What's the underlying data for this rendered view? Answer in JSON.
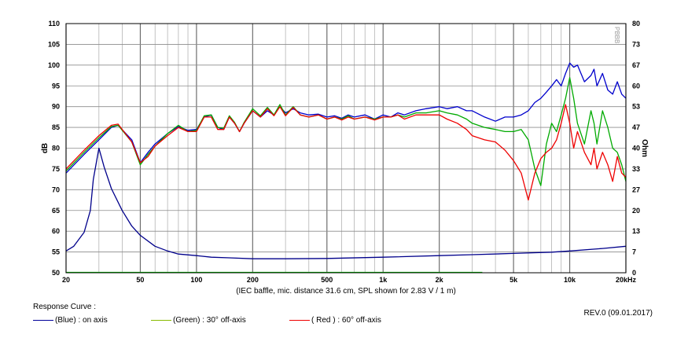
{
  "chart_data": {
    "type": "line",
    "caption": "(IEC baffle, mic. distance 31.6 cm, SPL shown for 2.83 V / 1 m)",
    "ylabel_left": "dB",
    "ylabel_right": "Ohm",
    "watermark": "PBBB",
    "x_scale": "log",
    "xlim": [
      20,
      20000
    ],
    "ylim_left": [
      50,
      110
    ],
    "ylim_right": [
      0,
      80
    ],
    "x_ticks": [
      {
        "value": 20,
        "label": "20"
      },
      {
        "value": 50,
        "label": "50"
      },
      {
        "value": 100,
        "label": "100"
      },
      {
        "value": 200,
        "label": "200"
      },
      {
        "value": 500,
        "label": "500"
      },
      {
        "value": 1000,
        "label": "1k"
      },
      {
        "value": 2000,
        "label": "2k"
      },
      {
        "value": 5000,
        "label": "5k"
      },
      {
        "value": 10000,
        "label": "10k"
      },
      {
        "value": 20000,
        "label": "20kHz"
      }
    ],
    "y_ticks_left": [
      "50",
      "55",
      "60",
      "65",
      "70",
      "75",
      "80",
      "85",
      "90",
      "95",
      "100",
      "105",
      "110"
    ],
    "y_ticks_right": [
      "0",
      "7",
      "13",
      "20",
      "27",
      "33",
      "40",
      "47",
      "53",
      "60",
      "67",
      "73",
      "80"
    ],
    "grid": true,
    "series": [
      {
        "name": "(Blue)  : on axis",
        "color": "#0000cc",
        "axis": "left",
        "x": [
          20,
          25,
          30,
          35,
          38,
          45,
          50,
          55,
          60,
          70,
          80,
          90,
          100,
          110,
          120,
          130,
          140,
          150,
          160,
          170,
          180,
          200,
          220,
          240,
          260,
          280,
          300,
          330,
          360,
          400,
          450,
          500,
          550,
          600,
          650,
          700,
          800,
          900,
          1000,
          1100,
          1200,
          1300,
          1500,
          1700,
          2000,
          2200,
          2500,
          2800,
          3000,
          3500,
          4000,
          4500,
          5000,
          5500,
          6000,
          6500,
          7000,
          7500,
          8000,
          8500,
          9000,
          9500,
          10000,
          10500,
          11000,
          12000,
          13000,
          13500,
          14000,
          15000,
          16000,
          17000,
          18000,
          19000,
          20000
        ],
        "y": [
          74.0,
          78.5,
          82.0,
          85.0,
          85.5,
          82.0,
          76.5,
          79.0,
          81.0,
          83.5,
          85.2,
          84.3,
          84.5,
          87.5,
          88.0,
          85.0,
          84.5,
          87.5,
          86.0,
          84.0,
          86.0,
          89.0,
          87.5,
          89.0,
          88.0,
          90.0,
          88.5,
          89.5,
          88.5,
          88.0,
          88.2,
          87.5,
          87.8,
          87.2,
          88.0,
          87.5,
          88.0,
          87.0,
          88.0,
          87.5,
          88.5,
          88.0,
          89.0,
          89.5,
          90.0,
          89.5,
          90.0,
          89.0,
          89.0,
          87.5,
          86.5,
          87.5,
          87.5,
          88.0,
          89.0,
          91.0,
          92.0,
          93.5,
          95.0,
          96.5,
          95.0,
          98.0,
          100.5,
          99.5,
          100.0,
          96.0,
          97.5,
          99.0,
          95.0,
          98.0,
          94.0,
          93.0,
          96.0,
          93.0,
          92.0
        ]
      },
      {
        "name": "(Green) : 30° off-axis",
        "color": "#00aa00",
        "axis": "left",
        "x": [
          20,
          25,
          30,
          35,
          38,
          45,
          50,
          55,
          60,
          70,
          80,
          90,
          100,
          110,
          120,
          130,
          140,
          150,
          160,
          170,
          180,
          200,
          220,
          240,
          260,
          280,
          300,
          330,
          360,
          400,
          450,
          500,
          550,
          600,
          650,
          700,
          800,
          900,
          1000,
          1100,
          1200,
          1300,
          1500,
          1700,
          2000,
          2200,
          2500,
          2800,
          3000,
          3500,
          4000,
          4500,
          5000,
          5500,
          6000,
          6500,
          7000,
          7500,
          8000,
          8500,
          9000,
          9500,
          10000,
          10500,
          11000,
          12000,
          13000,
          13500,
          14000,
          15000,
          16000,
          17000,
          18000,
          19000,
          20000
        ],
        "y": [
          74.5,
          79.0,
          82.5,
          85.2,
          85.5,
          81.5,
          76.0,
          78.5,
          80.5,
          83.5,
          85.5,
          84.0,
          84.3,
          87.8,
          88.0,
          85.0,
          84.8,
          87.8,
          86.2,
          84.0,
          86.2,
          89.5,
          87.8,
          89.8,
          88.0,
          90.5,
          88.0,
          90.0,
          88.0,
          87.5,
          88.0,
          87.0,
          87.5,
          87.0,
          87.8,
          87.0,
          87.5,
          87.0,
          87.5,
          87.5,
          88.0,
          87.5,
          88.5,
          88.5,
          89.0,
          88.5,
          88.0,
          87.0,
          86.0,
          85.0,
          84.5,
          84.0,
          84.0,
          84.5,
          82.0,
          75.0,
          71.0,
          81.0,
          86.0,
          84.0,
          88.0,
          92.0,
          97.0,
          92.0,
          86.0,
          81.0,
          89.0,
          86.0,
          81.0,
          89.0,
          85.0,
          80.0,
          79.0,
          76.0,
          72.0
        ]
      },
      {
        "name": "( Red ) : 60° off-axis",
        "color": "#ee0000",
        "axis": "left",
        "x": [
          20,
          25,
          30,
          35,
          38,
          45,
          50,
          55,
          60,
          70,
          80,
          90,
          100,
          110,
          120,
          130,
          140,
          150,
          160,
          170,
          180,
          200,
          220,
          240,
          260,
          280,
          300,
          330,
          360,
          400,
          450,
          500,
          550,
          600,
          650,
          700,
          800,
          900,
          1000,
          1100,
          1200,
          1300,
          1500,
          1700,
          2000,
          2200,
          2500,
          2800,
          3000,
          3500,
          4000,
          4500,
          5000,
          5500,
          6000,
          6500,
          7000,
          7500,
          8000,
          8500,
          9000,
          9500,
          10000,
          10500,
          11000,
          12000,
          13000,
          13500,
          14000,
          15000,
          16000,
          17000,
          18000,
          19000,
          20000
        ],
        "y": [
          75.0,
          79.5,
          83.0,
          85.5,
          85.8,
          81.5,
          76.5,
          78.0,
          80.5,
          83.0,
          85.0,
          84.0,
          84.0,
          87.5,
          87.5,
          84.5,
          84.5,
          87.5,
          86.0,
          84.0,
          86.0,
          89.0,
          87.5,
          89.5,
          87.8,
          90.0,
          87.8,
          89.8,
          88.0,
          87.5,
          88.0,
          87.0,
          87.5,
          86.8,
          87.5,
          87.0,
          87.5,
          86.8,
          87.5,
          87.5,
          88.0,
          87.0,
          88.0,
          88.0,
          88.0,
          87.0,
          86.0,
          84.5,
          83.0,
          82.0,
          81.5,
          79.5,
          77.0,
          74.0,
          67.5,
          74.0,
          77.5,
          79.0,
          80.0,
          82.0,
          86.0,
          90.5,
          86.0,
          80.0,
          84.0,
          79.0,
          76.0,
          80.0,
          75.0,
          79.0,
          76.0,
          72.0,
          78.0,
          74.0,
          73.0
        ]
      },
      {
        "name": "impedance",
        "color": "#00008b",
        "axis": "right",
        "x": [
          20,
          22,
          25,
          27,
          28,
          30,
          32,
          35,
          40,
          45,
          50,
          60,
          70,
          80,
          100,
          120,
          150,
          200,
          300,
          500,
          1000,
          2000,
          3000,
          5000,
          8000,
          10000,
          15000,
          20000
        ],
        "y": [
          7.0,
          8.5,
          13.0,
          20.0,
          30.0,
          40.0,
          34.0,
          27.0,
          20.0,
          15.0,
          12.0,
          8.5,
          7.0,
          6.0,
          5.5,
          5.0,
          4.8,
          4.5,
          4.5,
          4.6,
          5.0,
          5.5,
          5.8,
          6.2,
          6.6,
          7.0,
          7.8,
          8.5
        ]
      },
      {
        "name": "baseline",
        "color": "#00cc00",
        "axis": "left",
        "x": [
          20,
          3400
        ],
        "y": [
          50.1,
          50.1
        ]
      }
    ]
  },
  "legend": {
    "title": "Response Curve :",
    "items": [
      {
        "label": "(Blue)  : on axis",
        "color": "#000099"
      },
      {
        "label": "(Green) : 30° off-axis",
        "color": "#88bb00"
      },
      {
        "label": "( Red ) : 60° off-axis",
        "color": "#ee0000"
      }
    ]
  },
  "revision": "REV.0 (09.01.2017)"
}
